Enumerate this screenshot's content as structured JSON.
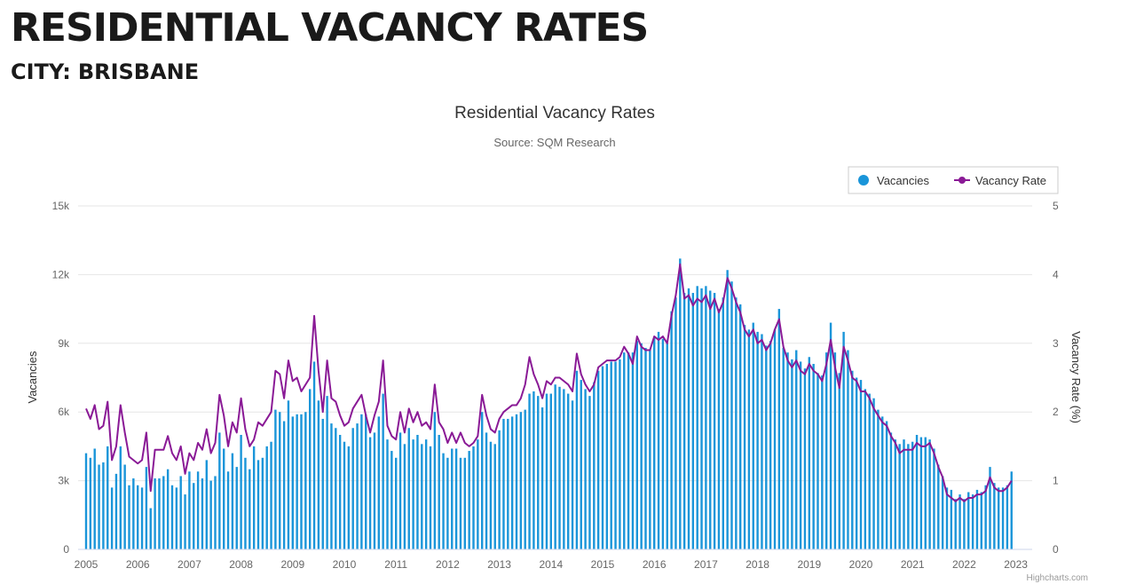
{
  "page": {
    "heading": "RESIDENTIAL VACANCY RATES",
    "city_label": "CITY:",
    "city": "BRISBANE"
  },
  "colors": {
    "bars": "#1a95d9",
    "line": "#8a1a96",
    "grid": "#e6e6e6",
    "text": "#333333",
    "axis_text": "#666666"
  },
  "credit": "Highcharts.com",
  "chart_data": {
    "type": "bar+line",
    "title": "Residential Vacancy Rates",
    "subtitle": "Source: SQM Research",
    "xlabel": "",
    "ylabel": "Vacancies",
    "y2label": "Vacancy Rate (%)",
    "ylim": [
      0,
      15000
    ],
    "y2lim": [
      0,
      5
    ],
    "yticks": [
      "0",
      "3k",
      "6k",
      "9k",
      "12k",
      "15k"
    ],
    "y2ticks": [
      "0",
      "1",
      "2",
      "3",
      "4",
      "5"
    ],
    "xticks": [
      "2005",
      "2006",
      "2007",
      "2008",
      "2009",
      "2010",
      "2011",
      "2012",
      "2013",
      "2014",
      "2015",
      "2016",
      "2017",
      "2018",
      "2019",
      "2020",
      "2021",
      "2022",
      "2023"
    ],
    "x_start_year": 2005,
    "legend": {
      "position": "top-right",
      "entries": [
        "Vacancies",
        "Vacancy Rate"
      ]
    },
    "grid": true,
    "series": [
      {
        "name": "Vacancies",
        "type": "bar",
        "values": [
          4200,
          4000,
          4400,
          3700,
          3800,
          4500,
          2700,
          3300,
          4500,
          3700,
          2800,
          3100,
          2800,
          2700,
          3600,
          1800,
          3100,
          3100,
          3200,
          3500,
          2800,
          2700,
          3200,
          2400,
          3400,
          2900,
          3400,
          3100,
          3900,
          3000,
          3200,
          5100,
          4400,
          3400,
          4200,
          3600,
          5000,
          4000,
          3500,
          4500,
          3900,
          4000,
          4500,
          4700,
          6100,
          6000,
          5600,
          6500,
          5800,
          5900,
          5900,
          6000,
          7000,
          8200,
          6500,
          5700,
          6700,
          5500,
          5300,
          5000,
          4700,
          4500,
          5300,
          5500,
          5900,
          5900,
          4900,
          5100,
          5800,
          6800,
          4800,
          4300,
          4000,
          5100,
          4600,
          5300,
          4800,
          5000,
          4600,
          4800,
          4500,
          6000,
          5000,
          4200,
          4000,
          4400,
          4400,
          4000,
          4000,
          4300,
          4500,
          4800,
          6000,
          5100,
          4700,
          4600,
          5200,
          5700,
          5700,
          5800,
          5900,
          6000,
          6100,
          6800,
          6900,
          6700,
          6200,
          6800,
          6800,
          7200,
          7100,
          7000,
          6800,
          6500,
          7800,
          7400,
          7000,
          6700,
          7300,
          7800,
          8000,
          8100,
          8200,
          8200,
          8300,
          8600,
          8600,
          8600,
          9100,
          9000,
          8800,
          8700,
          9300,
          9500,
          9200,
          9000,
          10400,
          11000,
          12700,
          11200,
          11400,
          11200,
          11500,
          11400,
          11500,
          11300,
          11200,
          10500,
          11000,
          12200,
          11700,
          11000,
          10700,
          9800,
          9600,
          9900,
          9500,
          9400,
          8900,
          9100,
          9600,
          10500,
          8800,
          8600,
          8300,
          8700,
          8200,
          7900,
          8400,
          8100,
          7700,
          7600,
          8600,
          9900,
          8600,
          7700,
          9500,
          8700,
          7800,
          7500,
          7400,
          7000,
          6800,
          6600,
          6100,
          5800,
          5600,
          5100,
          4800,
          4600,
          4800,
          4600,
          4700,
          5000,
          4900,
          4900,
          4800,
          4400,
          3700,
          3200,
          2700,
          2600,
          2200,
          2400,
          2200,
          2500,
          2400,
          2600,
          2500,
          2800,
          3600,
          2900,
          2700,
          2700,
          2800,
          3400
        ]
      },
      {
        "name": "Vacancy Rate",
        "type": "line",
        "values": [
          2.05,
          1.9,
          2.1,
          1.75,
          1.8,
          2.15,
          1.3,
          1.5,
          2.1,
          1.7,
          1.35,
          1.3,
          1.25,
          1.3,
          1.7,
          0.85,
          1.45,
          1.45,
          1.45,
          1.65,
          1.4,
          1.3,
          1.5,
          1.1,
          1.4,
          1.3,
          1.55,
          1.45,
          1.75,
          1.4,
          1.55,
          2.25,
          1.95,
          1.5,
          1.85,
          1.7,
          2.2,
          1.75,
          1.5,
          1.6,
          1.85,
          1.8,
          1.9,
          2.0,
          2.6,
          2.55,
          2.2,
          2.75,
          2.45,
          2.5,
          2.3,
          2.4,
          2.5,
          3.4,
          2.6,
          2.0,
          2.75,
          2.2,
          2.15,
          1.95,
          1.8,
          1.85,
          2.05,
          2.15,
          2.25,
          1.95,
          1.7,
          1.95,
          2.15,
          2.75,
          1.8,
          1.65,
          1.6,
          2.0,
          1.7,
          2.05,
          1.85,
          2.0,
          1.8,
          1.85,
          1.75,
          2.4,
          1.85,
          1.75,
          1.55,
          1.7,
          1.55,
          1.7,
          1.55,
          1.5,
          1.55,
          1.65,
          2.25,
          1.95,
          1.75,
          1.7,
          1.9,
          2.0,
          2.05,
          2.1,
          2.1,
          2.2,
          2.4,
          2.8,
          2.55,
          2.4,
          2.2,
          2.45,
          2.4,
          2.5,
          2.5,
          2.45,
          2.4,
          2.3,
          2.85,
          2.55,
          2.4,
          2.3,
          2.4,
          2.65,
          2.7,
          2.75,
          2.75,
          2.75,
          2.8,
          2.95,
          2.85,
          2.7,
          3.1,
          2.95,
          2.9,
          2.9,
          3.1,
          3.05,
          3.1,
          3.0,
          3.4,
          3.7,
          4.15,
          3.65,
          3.7,
          3.55,
          3.65,
          3.6,
          3.7,
          3.5,
          3.65,
          3.45,
          3.6,
          3.95,
          3.8,
          3.6,
          3.45,
          3.2,
          3.1,
          3.2,
          3.0,
          3.05,
          2.9,
          3.0,
          3.2,
          3.35,
          2.95,
          2.75,
          2.65,
          2.75,
          2.6,
          2.55,
          2.7,
          2.6,
          2.55,
          2.45,
          2.7,
          3.05,
          2.65,
          2.35,
          2.95,
          2.75,
          2.5,
          2.45,
          2.3,
          2.3,
          2.2,
          2.05,
          1.95,
          1.85,
          1.8,
          1.65,
          1.55,
          1.4,
          1.45,
          1.45,
          1.45,
          1.55,
          1.5,
          1.5,
          1.55,
          1.4,
          1.2,
          1.05,
          0.8,
          0.75,
          0.7,
          0.75,
          0.7,
          0.75,
          0.75,
          0.8,
          0.8,
          0.85,
          1.05,
          0.9,
          0.85,
          0.85,
          0.9,
          1.0
        ]
      }
    ]
  }
}
